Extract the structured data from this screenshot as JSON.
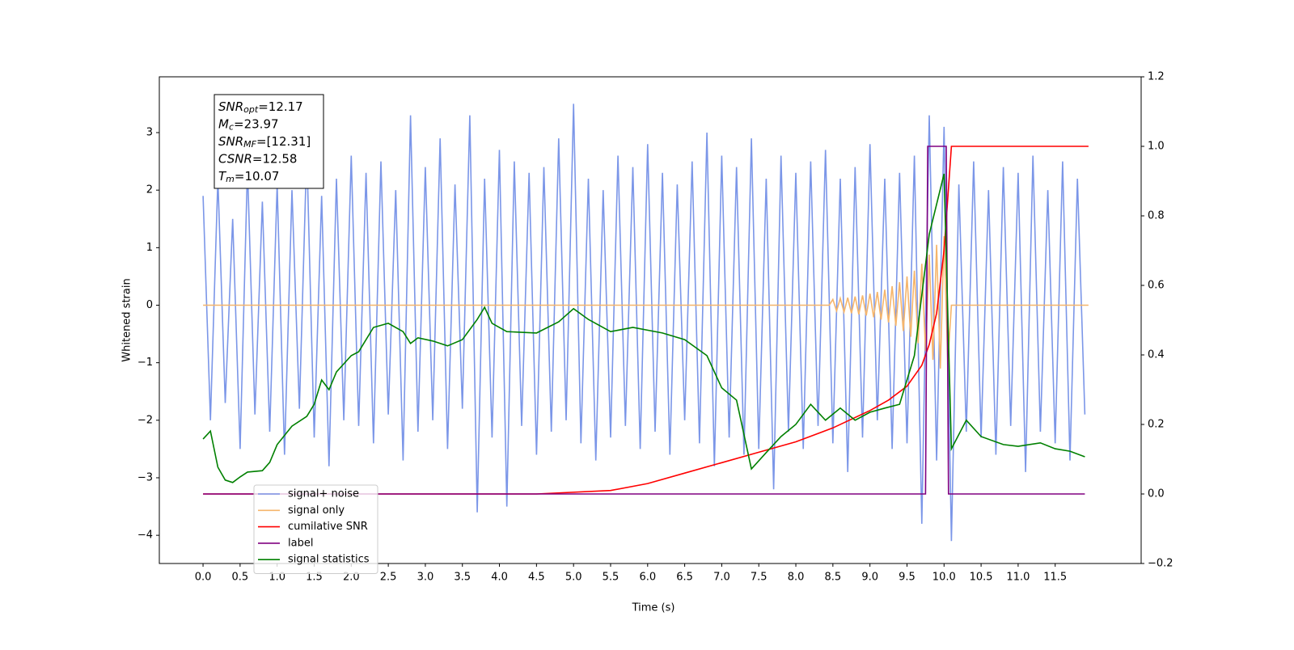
{
  "chart_data": {
    "type": "line",
    "xlabel": "Time (s)",
    "ylabel": "Whitened strain",
    "xlim": [
      -0.59,
      12.66
    ],
    "ylim": [
      -4.49,
      3.97
    ],
    "y2lim": [
      -0.2,
      1.2
    ],
    "xticks": [
      {
        "value": 0,
        "label": "0.0"
      },
      0.5,
      {
        "value": 1,
        "label": "1.0"
      },
      1.5,
      {
        "value": 2,
        "label": "2.0"
      },
      2.5,
      {
        "value": 3,
        "label": "3.0"
      },
      3.5,
      {
        "value": 4,
        "label": "4.0"
      },
      4.5,
      {
        "value": 5,
        "label": "5.0"
      },
      5.5,
      {
        "value": 6,
        "label": "6.0"
      },
      6.5,
      {
        "value": 7,
        "label": "7.0"
      },
      7.5,
      {
        "value": 8,
        "label": "8.0"
      },
      8.5,
      {
        "value": 9,
        "label": "9.0"
      },
      9.5,
      {
        "value": 10,
        "label": "10.0"
      },
      10.5,
      {
        "value": 11,
        "label": "11.0"
      },
      11.5
    ],
    "yticks": [
      {
        "value": -4,
        "label": "−4"
      },
      {
        "value": -3,
        "label": "−3"
      },
      {
        "value": -2,
        "label": "−2"
      },
      {
        "value": -1,
        "label": "−1"
      },
      0,
      1,
      2,
      3
    ],
    "y2ticks": [
      {
        "value": -0.2,
        "label": "−0.2"
      },
      {
        "value": 0,
        "label": "0.0"
      },
      0.2,
      0.4,
      0.6,
      0.8,
      {
        "value": 1,
        "label": "1.0"
      },
      1.2
    ],
    "legend": "lower left",
    "annotation": [
      {
        "name": "SNR",
        "sub": "opt",
        "value": "=12.17"
      },
      {
        "name": "M",
        "sub": "c",
        "value": "=23.97"
      },
      {
        "name": "SNR",
        "sub": "MF",
        "value": "=[12.31]"
      },
      {
        "name": "CSNR",
        "sub": "",
        "value": "=12.58"
      },
      {
        "name": "T",
        "sub": "m",
        "value": "=10.07"
      }
    ],
    "series": [
      {
        "name": "signal+ noise",
        "color": "#7b96e8",
        "axis": "y",
        "x": [
          0,
          0.1,
          0.2,
          0.3,
          0.4,
          0.5,
          0.6,
          0.7,
          0.8,
          0.9,
          1,
          1.1,
          1.2,
          1.3,
          1.4,
          1.5,
          1.6,
          1.7,
          1.8,
          1.9,
          2,
          2.1,
          2.2,
          2.3,
          2.4,
          2.5,
          2.6,
          2.7,
          2.8,
          2.9,
          3,
          3.1,
          3.2,
          3.3,
          3.4,
          3.5,
          3.6,
          3.7,
          3.8,
          3.9,
          4,
          4.1,
          4.2,
          4.3,
          4.4,
          4.5,
          4.6,
          4.7,
          4.8,
          4.9,
          5,
          5.1,
          5.2,
          5.3,
          5.4,
          5.5,
          5.6,
          5.7,
          5.8,
          5.9,
          6,
          6.1,
          6.2,
          6.3,
          6.4,
          6.5,
          6.6,
          6.7,
          6.8,
          6.9,
          7,
          7.1,
          7.2,
          7.3,
          7.4,
          7.5,
          7.6,
          7.7,
          7.8,
          7.9,
          8,
          8.1,
          8.2,
          8.3,
          8.4,
          8.5,
          8.6,
          8.7,
          8.8,
          8.9,
          9,
          9.1,
          9.2,
          9.3,
          9.4,
          9.5,
          9.6,
          9.7,
          9.8,
          9.9,
          10,
          10.1,
          10.2,
          10.3,
          10.4,
          10.5,
          10.6,
          10.7,
          10.8,
          10.9,
          11,
          11.1,
          11.2,
          11.3,
          11.4,
          11.5,
          11.6,
          11.7,
          11.8,
          11.9
        ],
        "values": [
          1.9,
          -2.0,
          2.2,
          -1.7,
          1.5,
          -2.5,
          2.4,
          -1.9,
          1.8,
          -2.2,
          2.1,
          -2.6,
          2.0,
          -1.8,
          2.7,
          -2.3,
          1.9,
          -2.8,
          2.2,
          -2.0,
          2.6,
          -2.1,
          2.3,
          -2.4,
          2.5,
          -1.9,
          2.0,
          -2.7,
          3.3,
          -2.2,
          2.4,
          -2.0,
          2.9,
          -2.5,
          2.1,
          -1.8,
          3.3,
          -3.6,
          2.2,
          -2.3,
          2.7,
          -3.5,
          2.5,
          -2.1,
          2.3,
          -2.6,
          2.4,
          -2.2,
          2.9,
          -2.0,
          3.5,
          -2.4,
          2.2,
          -2.7,
          2.0,
          -2.3,
          2.6,
          -2.1,
          2.4,
          -2.5,
          2.8,
          -2.2,
          2.3,
          -2.6,
          2.1,
          -2.0,
          2.5,
          -2.4,
          3.0,
          -2.8,
          2.6,
          -2.3,
          2.4,
          -2.6,
          2.9,
          -2.5,
          2.2,
          -3.2,
          2.6,
          -2.2,
          2.3,
          -2.5,
          2.5,
          -2.1,
          2.7,
          -2.4,
          2.2,
          -2.9,
          2.4,
          -2.3,
          2.8,
          -2.0,
          2.2,
          -2.5,
          2.3,
          -2.4,
          2.6,
          -3.8,
          3.3,
          -2.7,
          3.1,
          -4.1,
          2.1,
          -2.2,
          2.5,
          -2.3,
          2.0,
          -2.6,
          2.4,
          -2.1,
          2.3,
          -2.9,
          2.6,
          -2.2,
          2.0,
          -2.4,
          2.5,
          -2.7,
          2.2,
          -1.9
        ]
      },
      {
        "name": "signal only",
        "color": "#f5b56b",
        "axis": "y",
        "x": [
          0,
          8.45,
          8.5,
          8.55,
          8.6,
          8.65,
          8.7,
          8.75,
          8.8,
          8.85,
          8.9,
          8.95,
          9,
          9.05,
          9.1,
          9.15,
          9.2,
          9.25,
          9.3,
          9.35,
          9.4,
          9.45,
          9.5,
          9.55,
          9.6,
          9.65,
          9.7,
          9.75,
          9.8,
          9.85,
          9.9,
          9.95,
          10,
          10.05,
          10.1,
          11.95
        ],
        "values": [
          0,
          0,
          0.1,
          -0.1,
          0.12,
          -0.12,
          0.13,
          -0.14,
          0.15,
          -0.16,
          0.17,
          -0.18,
          0.2,
          -0.21,
          0.23,
          -0.25,
          0.27,
          -0.3,
          0.33,
          -0.36,
          0.4,
          -0.45,
          0.5,
          -0.55,
          0.6,
          -0.66,
          0.72,
          -0.8,
          0.88,
          -0.95,
          1.05,
          -1.1,
          1.2,
          -1.0,
          0,
          0
        ]
      },
      {
        "name": "cumilative SNR",
        "color": "#ff0000",
        "axis": "y2",
        "x": [
          0,
          4.5,
          5.5,
          6,
          6.5,
          7,
          7.5,
          8,
          8.5,
          9,
          9.25,
          9.5,
          9.7,
          9.8,
          9.9,
          10,
          10.05,
          10.1,
          11.95
        ],
        "values": [
          0,
          0,
          0.01,
          0.03,
          0.06,
          0.09,
          0.12,
          0.15,
          0.19,
          0.24,
          0.27,
          0.31,
          0.37,
          0.43,
          0.52,
          0.7,
          0.85,
          1.0,
          1.0
        ]
      },
      {
        "name": "label",
        "color": "#800080",
        "axis": "y2",
        "x": [
          0,
          9.75,
          9.78,
          10.03,
          10.06,
          11.9
        ],
        "values": [
          0,
          0,
          1,
          1,
          0,
          0
        ]
      },
      {
        "name": "signal statistics",
        "color": "#008000",
        "axis": "y2",
        "x": [
          0,
          0.1,
          0.2,
          0.3,
          0.4,
          0.5,
          0.6,
          0.8,
          0.9,
          1,
          1.2,
          1.4,
          1.5,
          1.6,
          1.7,
          1.8,
          2,
          2.1,
          2.3,
          2.5,
          2.7,
          2.8,
          2.9,
          3.1,
          3.3,
          3.5,
          3.7,
          3.8,
          3.9,
          4.1,
          4.5,
          4.8,
          5,
          5.2,
          5.5,
          5.8,
          6.2,
          6.5,
          6.8,
          7,
          7.2,
          7.4,
          7.6,
          7.8,
          8,
          8.2,
          8.4,
          8.6,
          8.8,
          9,
          9.2,
          9.4,
          9.6,
          9.8,
          10,
          10.1,
          10.3,
          10.5,
          10.8,
          11,
          11.3,
          11.5,
          11.7,
          11.9
        ],
        "values": [
          0.158,
          0.181,
          0.077,
          0.04,
          0.033,
          0.049,
          0.063,
          0.067,
          0.091,
          0.142,
          0.195,
          0.223,
          0.258,
          0.328,
          0.3,
          0.351,
          0.398,
          0.409,
          0.479,
          0.491,
          0.467,
          0.433,
          0.449,
          0.44,
          0.426,
          0.444,
          0.502,
          0.537,
          0.491,
          0.467,
          0.463,
          0.495,
          0.533,
          0.502,
          0.467,
          0.479,
          0.463,
          0.444,
          0.398,
          0.305,
          0.27,
          0.072,
          0.119,
          0.165,
          0.2,
          0.258,
          0.212,
          0.247,
          0.212,
          0.235,
          0.247,
          0.258,
          0.398,
          0.747,
          0.921,
          0.13,
          0.212,
          0.165,
          0.142,
          0.137,
          0.147,
          0.13,
          0.123,
          0.107
        ]
      }
    ]
  }
}
